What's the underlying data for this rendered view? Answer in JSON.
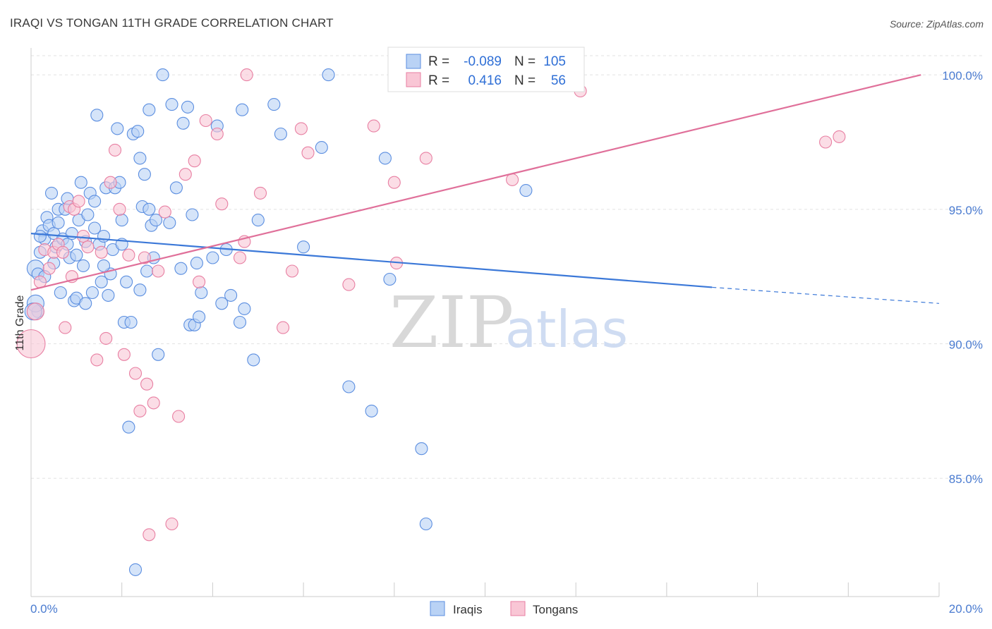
{
  "header": {
    "title": "IRAQI VS TONGAN 11TH GRADE CORRELATION CHART",
    "source": "Source: ZipAtlas.com"
  },
  "watermark": {
    "part1": "ZIP",
    "part2": "atlas"
  },
  "legend": {
    "rows": [
      {
        "r_label": "R =",
        "r_value": "-0.089",
        "n_label": "N =",
        "n_value": "105",
        "fill": "#b9d2f5",
        "stroke": "#5b8ee0"
      },
      {
        "r_label": "R =",
        "r_value": "0.416",
        "n_label": "N =",
        "n_value": "56",
        "fill": "#f9c6d5",
        "stroke": "#e87fa2"
      }
    ]
  },
  "bottom_legend": {
    "items": [
      {
        "label": "Iraqis",
        "fill": "#b9d2f5",
        "stroke": "#5b8ee0"
      },
      {
        "label": "Tongans",
        "fill": "#f9c6d5",
        "stroke": "#e87fa2"
      }
    ]
  },
  "chart_data": {
    "type": "scatter",
    "title": "IRAQI VS TONGAN 11TH GRADE CORRELATION CHART",
    "xlabel": "",
    "ylabel": "11th Grade",
    "xlim": [
      0,
      20
    ],
    "ylim": [
      80.6,
      101.0
    ],
    "x_tick_labels": [
      "0.0%",
      "20.0%"
    ],
    "y_ticks": [
      85,
      90,
      95,
      100
    ],
    "y_tick_labels": [
      "85.0%",
      "90.0%",
      "95.0%",
      "100.0%"
    ],
    "grid": true,
    "legend_position": "top-center",
    "colors": {
      "iraqis": "#3b78d8",
      "tongans": "#e0709a",
      "grid": "#e2e2e2"
    },
    "series": [
      {
        "name": "Iraqis",
        "color": "#5b8ee0",
        "fill": "#b9d2f5",
        "trend": {
          "x": [
            0.0,
            15.0
          ],
          "y": [
            94.1,
            92.1
          ],
          "dashed_to": [
            20.0,
            91.5
          ]
        },
        "points": [
          [
            0.1,
            92.8
          ],
          [
            0.15,
            92.6
          ],
          [
            0.15,
            91.2
          ],
          [
            0.2,
            93.4
          ],
          [
            0.25,
            94.2
          ],
          [
            0.3,
            93.9
          ],
          [
            0.35,
            94.7
          ],
          [
            0.4,
            94.4
          ],
          [
            0.45,
            95.6
          ],
          [
            0.5,
            94.1
          ],
          [
            0.55,
            93.6
          ],
          [
            0.6,
            95.0
          ],
          [
            0.65,
            91.9
          ],
          [
            0.7,
            93.9
          ],
          [
            0.75,
            95.0
          ],
          [
            0.8,
            93.7
          ],
          [
            0.85,
            93.2
          ],
          [
            0.9,
            94.1
          ],
          [
            0.95,
            91.6
          ],
          [
            1.0,
            91.7
          ],
          [
            1.05,
            94.6
          ],
          [
            1.1,
            96.0
          ],
          [
            1.15,
            92.9
          ],
          [
            1.2,
            91.5
          ],
          [
            1.25,
            94.8
          ],
          [
            1.3,
            95.6
          ],
          [
            1.35,
            91.9
          ],
          [
            1.4,
            94.3
          ],
          [
            1.45,
            98.5
          ],
          [
            1.5,
            93.7
          ],
          [
            1.55,
            92.3
          ],
          [
            1.6,
            94.0
          ],
          [
            1.65,
            95.8
          ],
          [
            1.7,
            91.8
          ],
          [
            1.75,
            92.6
          ],
          [
            1.8,
            93.5
          ],
          [
            1.85,
            95.8
          ],
          [
            1.9,
            98.0
          ],
          [
            1.95,
            96.0
          ],
          [
            2.0,
            94.6
          ],
          [
            2.05,
            90.8
          ],
          [
            2.1,
            92.3
          ],
          [
            2.15,
            86.9
          ],
          [
            2.2,
            90.8
          ],
          [
            2.25,
            97.8
          ],
          [
            2.3,
            81.6
          ],
          [
            2.35,
            97.9
          ],
          [
            2.4,
            96.9
          ],
          [
            2.45,
            95.1
          ],
          [
            2.5,
            96.3
          ],
          [
            2.55,
            92.7
          ],
          [
            2.6,
            98.7
          ],
          [
            2.65,
            94.4
          ],
          [
            2.7,
            93.2
          ],
          [
            2.75,
            94.6
          ],
          [
            2.8,
            89.6
          ],
          [
            2.9,
            100.0
          ],
          [
            3.05,
            94.5
          ],
          [
            3.1,
            98.9
          ],
          [
            3.2,
            95.8
          ],
          [
            3.35,
            98.2
          ],
          [
            3.45,
            98.8
          ],
          [
            3.5,
            90.7
          ],
          [
            3.55,
            94.8
          ],
          [
            3.6,
            90.7
          ],
          [
            3.65,
            93.0
          ],
          [
            3.7,
            91.0
          ],
          [
            3.75,
            91.9
          ],
          [
            4.0,
            93.2
          ],
          [
            4.1,
            98.1
          ],
          [
            4.3,
            93.5
          ],
          [
            4.4,
            91.8
          ],
          [
            4.6,
            90.8
          ],
          [
            4.65,
            98.7
          ],
          [
            4.7,
            91.3
          ],
          [
            4.9,
            89.4
          ],
          [
            5.0,
            94.6
          ],
          [
            5.35,
            98.9
          ],
          [
            5.5,
            97.8
          ],
          [
            6.0,
            93.6
          ],
          [
            6.4,
            97.3
          ],
          [
            6.55,
            100.0
          ],
          [
            7.0,
            88.4
          ],
          [
            7.5,
            87.5
          ],
          [
            7.8,
            96.9
          ],
          [
            7.9,
            92.4
          ],
          [
            8.6,
            86.1
          ],
          [
            8.7,
            83.3
          ],
          [
            10.9,
            95.7
          ],
          [
            0.1,
            91.5
          ],
          [
            0.2,
            94.0
          ],
          [
            0.3,
            92.5
          ],
          [
            0.5,
            93.0
          ],
          [
            0.6,
            94.5
          ],
          [
            0.8,
            95.4
          ],
          [
            1.0,
            93.3
          ],
          [
            1.2,
            93.8
          ],
          [
            1.4,
            95.3
          ],
          [
            1.6,
            92.9
          ],
          [
            2.0,
            93.7
          ],
          [
            2.4,
            92.0
          ],
          [
            2.6,
            95.0
          ],
          [
            3.3,
            92.8
          ],
          [
            4.2,
            91.5
          ],
          [
            0.05,
            91.2
          ]
        ]
      },
      {
        "name": "Tongans",
        "color": "#e87fa2",
        "fill": "#f9c6d5",
        "trend": {
          "x": [
            0.0,
            19.6
          ],
          "y": [
            92.0,
            100.0
          ]
        },
        "points": [
          [
            0.0,
            90.0
          ],
          [
            0.1,
            91.2
          ],
          [
            0.2,
            92.3
          ],
          [
            0.3,
            93.5
          ],
          [
            0.4,
            92.8
          ],
          [
            0.5,
            93.4
          ],
          [
            0.6,
            93.7
          ],
          [
            0.7,
            93.4
          ],
          [
            0.75,
            90.6
          ],
          [
            0.85,
            95.1
          ],
          [
            0.95,
            95.0
          ],
          [
            1.05,
            95.3
          ],
          [
            1.15,
            94.0
          ],
          [
            1.25,
            93.6
          ],
          [
            1.45,
            89.4
          ],
          [
            1.55,
            93.4
          ],
          [
            1.65,
            90.2
          ],
          [
            1.75,
            96.0
          ],
          [
            1.85,
            97.2
          ],
          [
            1.95,
            95.0
          ],
          [
            2.05,
            89.6
          ],
          [
            2.15,
            93.3
          ],
          [
            2.3,
            88.9
          ],
          [
            2.4,
            87.5
          ],
          [
            2.5,
            93.2
          ],
          [
            2.55,
            88.5
          ],
          [
            2.6,
            82.9
          ],
          [
            2.7,
            87.8
          ],
          [
            2.8,
            92.7
          ],
          [
            2.95,
            94.9
          ],
          [
            3.1,
            83.3
          ],
          [
            3.25,
            87.3
          ],
          [
            3.4,
            96.3
          ],
          [
            3.6,
            96.8
          ],
          [
            3.7,
            92.3
          ],
          [
            3.85,
            98.3
          ],
          [
            4.1,
            97.8
          ],
          [
            4.2,
            95.2
          ],
          [
            4.6,
            93.2
          ],
          [
            4.7,
            93.8
          ],
          [
            4.75,
            100.0
          ],
          [
            5.05,
            95.6
          ],
          [
            5.55,
            90.6
          ],
          [
            5.75,
            92.7
          ],
          [
            5.95,
            98.0
          ],
          [
            6.1,
            97.1
          ],
          [
            7.0,
            92.2
          ],
          [
            7.55,
            98.1
          ],
          [
            8.0,
            96.0
          ],
          [
            8.05,
            93.0
          ],
          [
            8.7,
            96.9
          ],
          [
            10.6,
            96.1
          ],
          [
            12.1,
            99.4
          ],
          [
            17.5,
            97.5
          ],
          [
            17.8,
            97.7
          ],
          [
            0.9,
            92.5
          ]
        ]
      }
    ]
  }
}
